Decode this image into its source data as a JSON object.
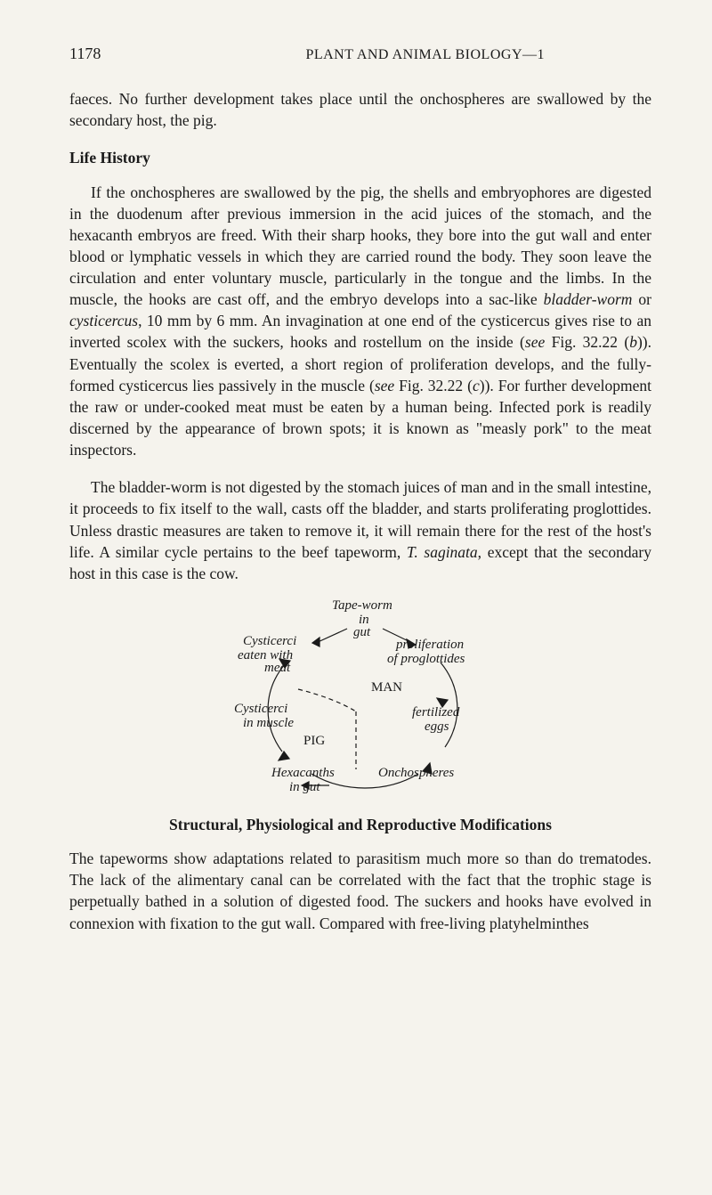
{
  "header": {
    "page_number": "1178",
    "book_title": "PLANT AND ANIMAL BIOLOGY—1"
  },
  "paragraphs": {
    "intro": "faeces. No further development takes place until the onchospheres are swallowed by the secondary host, the pig.",
    "life_history_header": "Life History",
    "life_history_p1": "If the onchospheres are swallowed by the pig, the shells and embryophores are digested in the duodenum after previous immersion in the acid juices of the stomach, and the hexacanth embryos are freed. With their sharp hooks, they bore into the gut wall and enter blood or lymphatic vessels in which they are carried round the body. They soon leave the circulation and enter voluntary muscle, particularly in the tongue and the limbs. In the muscle, the hooks are cast off, and the embryo develops into a sac-like bladder-worm or cysticercus, 10 mm by 6 mm. An invagination at one end of the cysticercus gives rise to an inverted scolex with the suckers, hooks and rostellum on the inside (see Fig. 32.22 (b)). Eventually the scolex is everted, a short region of proliferation develops, and the fully-formed cysticercus lies passively in the muscle (see Fig. 32.22 (c)). For further development the raw or under-cooked meat must be eaten by a human being. Infected pork is readily discerned by the appearance of brown spots; it is known as \"measly pork\" to the meat inspectors.",
    "life_history_p2": "The bladder-worm is not digested by the stomach juices of man and in the small intestine, it proceeds to fix itself to the wall, casts off the bladder, and starts proliferating proglottides. Unless drastic measures are taken to remove it, it will remain there for the rest of the host's life. A similar cycle pertains to the beef tapeworm, T. saginata, except that the secondary host in this case is the cow.",
    "structural_header": "Structural, Physiological and Reproductive Modifications",
    "structural_p1": "The tapeworms show adaptations related to parasitism much more so than do trematodes. The lack of the alimentary canal can be correlated with the fact that the trophic stage is perpetually bathed in a solution of digested food. The suckers and hooks have evolved in connexion with fixation to the gut wall. Compared with free-living platyhelminthes"
  },
  "diagram": {
    "labels": {
      "tapeworm": "Tape-worm",
      "in": "in",
      "gut": "gut",
      "cysticerci_eaten": "Cysticerci",
      "eaten_with": "eaten with",
      "meat": "meat",
      "proliferation": "proliferation",
      "of_proglottides": "of proglottides",
      "man": "MAN",
      "cysticerci_muscle": "Cysticerci",
      "in_muscle": "in muscle",
      "fertilized": "fertilized",
      "eggs": "eggs",
      "pig": "PIG",
      "hexacanths": "Hexacanths",
      "in_gut": "in gut",
      "onchospheres": "Onchospheres"
    },
    "colors": {
      "stroke": "#1a1a1a",
      "background": "#f5f3ed"
    },
    "styles": {
      "font_size": 15,
      "font_style": "italic",
      "stroke_width": 1.2
    }
  }
}
